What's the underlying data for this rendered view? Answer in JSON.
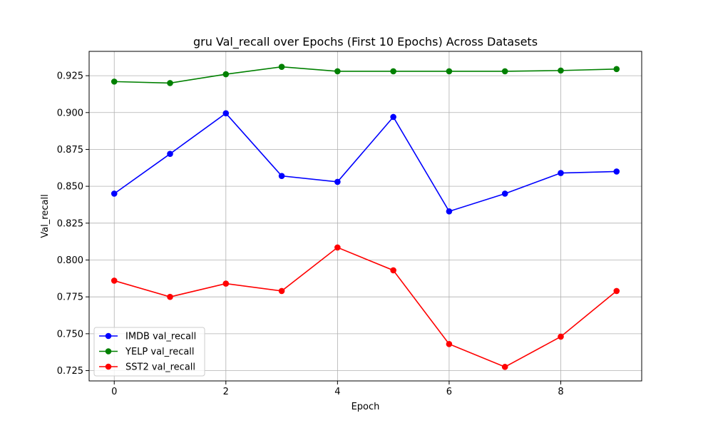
{
  "chart_data": {
    "type": "line",
    "title": "gru Val_recall over Epochs (First 10 Epochs) Across Datasets",
    "xlabel": "Epoch",
    "ylabel": "Val_recall",
    "x": [
      0,
      1,
      2,
      3,
      4,
      5,
      6,
      7,
      8,
      9
    ],
    "xlim": [
      -0.45,
      9.45
    ],
    "ylim": [
      0.718,
      0.9415
    ],
    "x_ticks": [
      "0",
      "2",
      "4",
      "6",
      "8"
    ],
    "y_ticks": [
      "0.725",
      "0.750",
      "0.775",
      "0.800",
      "0.825",
      "0.850",
      "0.875",
      "0.900",
      "0.925"
    ],
    "grid": true,
    "legend_position": "lower-left",
    "series": [
      {
        "name": "IMDB val_recall",
        "color": "#0000ff",
        "values": [
          0.845,
          0.872,
          0.8995,
          0.857,
          0.853,
          0.897,
          0.833,
          0.845,
          0.859,
          0.86
        ]
      },
      {
        "name": "YELP val_recall",
        "color": "#008000",
        "values": [
          0.921,
          0.92,
          0.926,
          0.931,
          0.928,
          0.928,
          0.928,
          0.928,
          0.9285,
          0.9295
        ]
      },
      {
        "name": "SST2 val_recall",
        "color": "#ff0000",
        "values": [
          0.786,
          0.775,
          0.784,
          0.779,
          0.8085,
          0.793,
          0.743,
          0.7275,
          0.748,
          0.779
        ]
      }
    ]
  }
}
